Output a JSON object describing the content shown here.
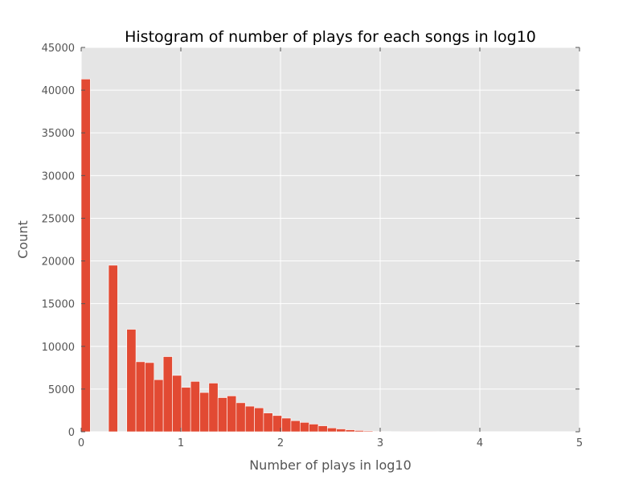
{
  "chart_data": {
    "type": "bar",
    "title": "Histogram of number of plays for each songs in log10",
    "xlabel": "Number of plays in log10",
    "ylabel": "Count",
    "xlim": [
      0,
      5
    ],
    "ylim": [
      0,
      45000
    ],
    "xticks": [
      0,
      1,
      2,
      3,
      4,
      5
    ],
    "yticks": [
      0,
      5000,
      10000,
      15000,
      20000,
      25000,
      30000,
      35000,
      40000,
      45000
    ],
    "grid": true,
    "bar_color": "#E24A33",
    "background_color": "#E5E5E5",
    "bin_width": 0.0915,
    "bins": [
      {
        "x": 0.0,
        "value": 41300
      },
      {
        "x": 0.0915,
        "value": 0
      },
      {
        "x": 0.183,
        "value": 0
      },
      {
        "x": 0.2745,
        "value": 19500
      },
      {
        "x": 0.366,
        "value": 0
      },
      {
        "x": 0.4575,
        "value": 12000
      },
      {
        "x": 0.549,
        "value": 8200
      },
      {
        "x": 0.6405,
        "value": 8100
      },
      {
        "x": 0.732,
        "value": 6100
      },
      {
        "x": 0.8235,
        "value": 8800
      },
      {
        "x": 0.915,
        "value": 6600
      },
      {
        "x": 1.0065,
        "value": 5200
      },
      {
        "x": 1.098,
        "value": 5900
      },
      {
        "x": 1.1895,
        "value": 4600
      },
      {
        "x": 1.281,
        "value": 5700
      },
      {
        "x": 1.3725,
        "value": 4000
      },
      {
        "x": 1.464,
        "value": 4200
      },
      {
        "x": 1.5555,
        "value": 3400
      },
      {
        "x": 1.647,
        "value": 3000
      },
      {
        "x": 1.7385,
        "value": 2800
      },
      {
        "x": 1.83,
        "value": 2200
      },
      {
        "x": 1.9215,
        "value": 1900
      },
      {
        "x": 2.013,
        "value": 1600
      },
      {
        "x": 2.1045,
        "value": 1300
      },
      {
        "x": 2.196,
        "value": 1100
      },
      {
        "x": 2.2875,
        "value": 900
      },
      {
        "x": 2.379,
        "value": 700
      },
      {
        "x": 2.4705,
        "value": 450
      },
      {
        "x": 2.562,
        "value": 330
      },
      {
        "x": 2.6535,
        "value": 230
      },
      {
        "x": 2.745,
        "value": 150
      },
      {
        "x": 2.8365,
        "value": 100
      },
      {
        "x": 2.928,
        "value": 60
      },
      {
        "x": 3.0195,
        "value": 35
      },
      {
        "x": 3.111,
        "value": 20
      },
      {
        "x": 3.2025,
        "value": 10
      },
      {
        "x": 3.294,
        "value": 6
      },
      {
        "x": 3.3855,
        "value": 4
      },
      {
        "x": 3.477,
        "value": 3
      }
    ]
  }
}
